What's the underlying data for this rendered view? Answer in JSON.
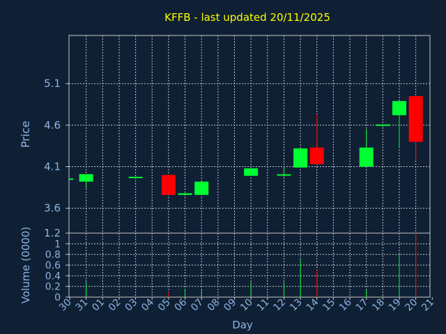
{
  "chart_data": {
    "type": "candlestick",
    "title": "KFFB - last updated 20/11/2025",
    "xlabel": "Day",
    "price_panel": {
      "ylabel": "Price",
      "yticks": [
        3.6,
        4.1,
        4.6,
        5.1
      ],
      "ylim": [
        3.3,
        5.68
      ]
    },
    "volume_panel": {
      "ylabel": "Volume (0000)",
      "yticks": [
        "0",
        "0.2",
        "0.4",
        "0.6",
        "0.8",
        "1",
        "1.2"
      ],
      "ylim": [
        0,
        1.2
      ]
    },
    "categories": [
      "30",
      "31",
      "01",
      "02",
      "03",
      "04",
      "05",
      "06",
      "07",
      "08",
      "09",
      "10",
      "11",
      "12",
      "13",
      "14",
      "15",
      "16",
      "17",
      "18",
      "19",
      "20",
      "21"
    ],
    "candles": [
      {
        "day": "30",
        "open": 3.95,
        "close": 3.95,
        "high": 3.95,
        "low": 3.95,
        "volume": 0
      },
      {
        "day": "31",
        "open": 3.92,
        "close": 4.01,
        "high": 4.01,
        "low": 3.84,
        "volume": 0.28
      },
      {
        "day": "03",
        "open": 3.97,
        "close": 3.97,
        "high": 3.98,
        "low": 3.97,
        "volume": 0.01
      },
      {
        "day": "05",
        "open": 4.0,
        "close": 3.76,
        "high": 4.0,
        "low": 3.76,
        "volume": 0.1
      },
      {
        "day": "06",
        "open": 3.76,
        "close": 3.78,
        "high": 3.78,
        "low": 3.76,
        "volume": 0.15
      },
      {
        "day": "07",
        "open": 3.76,
        "close": 3.92,
        "high": 3.92,
        "low": 3.76,
        "volume": 0.13
      },
      {
        "day": "10",
        "open": 3.99,
        "close": 4.08,
        "high": 4.08,
        "low": 3.99,
        "volume": 0.28
      },
      {
        "day": "12",
        "open": 3.99,
        "close": 4.0,
        "high": 4.09,
        "low": 3.98,
        "volume": 0.28
      },
      {
        "day": "13",
        "open": 4.09,
        "close": 4.32,
        "high": 4.32,
        "low": 4.09,
        "volume": 0.7
      },
      {
        "day": "14",
        "open": 4.33,
        "close": 4.13,
        "high": 4.73,
        "low": 4.13,
        "volume": 0.52
      },
      {
        "day": "17",
        "open": 4.1,
        "close": 4.33,
        "high": 4.55,
        "low": 4.1,
        "volume": 0.14
      },
      {
        "day": "18",
        "open": 4.59,
        "close": 4.6,
        "high": 4.6,
        "low": 4.58,
        "volume": 0.02
      },
      {
        "day": "19",
        "open": 4.72,
        "close": 4.89,
        "high": 4.89,
        "low": 4.33,
        "volume": 0.82
      },
      {
        "day": "20",
        "open": 4.95,
        "close": 4.4,
        "high": 4.95,
        "low": 4.17,
        "volume": 1.2
      }
    ],
    "colors": {
      "up": "#00ff33",
      "down": "#ff0000",
      "background": "#0f2035",
      "grid": "#c8c8c8",
      "title": "#ffff00",
      "text": "#8fb4e0"
    },
    "grid": true
  }
}
